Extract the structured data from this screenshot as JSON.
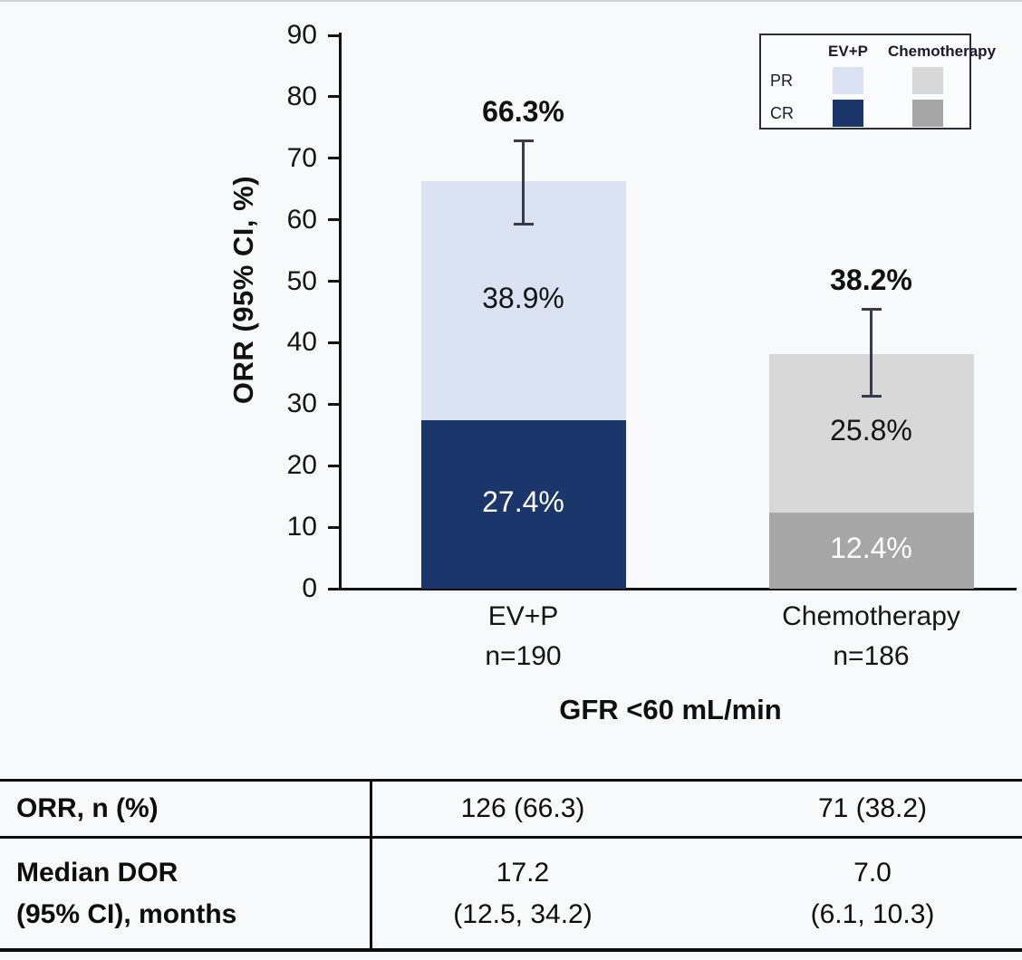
{
  "page": {
    "background": "#f8f9fa"
  },
  "chart_data": {
    "type": "bar",
    "subtype": "stacked-vertical",
    "title": "",
    "xlabel": "GFR <60 mL/min",
    "ylabel": "ORR (95% CI, %)",
    "ylim": [
      0,
      90
    ],
    "yticks": [
      0,
      10,
      20,
      30,
      40,
      50,
      60,
      70,
      80,
      90
    ],
    "grid": false,
    "legend_position": "top-right",
    "categories": [
      "EV+P",
      "Chemotherapy"
    ],
    "category_sublabels": [
      "n=190",
      "n=186"
    ],
    "series": [
      {
        "name": "CR",
        "values": [
          27.4,
          12.4
        ],
        "labels": [
          "27.4%",
          "12.4%"
        ],
        "colors": [
          "#1a366a",
          "#a6a6a6"
        ],
        "label_color": "#ffffff"
      },
      {
        "name": "PR",
        "values": [
          38.9,
          25.8
        ],
        "labels": [
          "38.9%",
          "25.8%"
        ],
        "colors": [
          "#dbe3f3",
          "#d8d8d8"
        ],
        "label_color": "#141414"
      }
    ],
    "totals": [
      66.3,
      38.2
    ],
    "total_labels": [
      "66.3%",
      "38.2%"
    ],
    "error_bars": [
      {
        "low": 59.1,
        "high": 73.0
      },
      {
        "low": 31.1,
        "high": 45.7
      }
    ]
  },
  "legend": {
    "col_headers": [
      "EV+P",
      "Chemotherapy"
    ],
    "rows": [
      {
        "label": "PR",
        "colors": [
          "#dbe3f3",
          "#d8d8d8"
        ]
      },
      {
        "label": "CR",
        "colors": [
          "#1a366a",
          "#a6a6a6"
        ]
      }
    ]
  },
  "table": {
    "rows": [
      {
        "label": "ORR, n (%)",
        "values": [
          "126 (66.3)",
          "71 (38.2)"
        ]
      },
      {
        "label_lines": [
          "Median DOR",
          "(95% CI), months"
        ],
        "values": [
          [
            "17.2",
            "(12.5, 34.2)"
          ],
          [
            "7.0",
            "(6.1, 10.3)"
          ]
        ]
      }
    ]
  }
}
